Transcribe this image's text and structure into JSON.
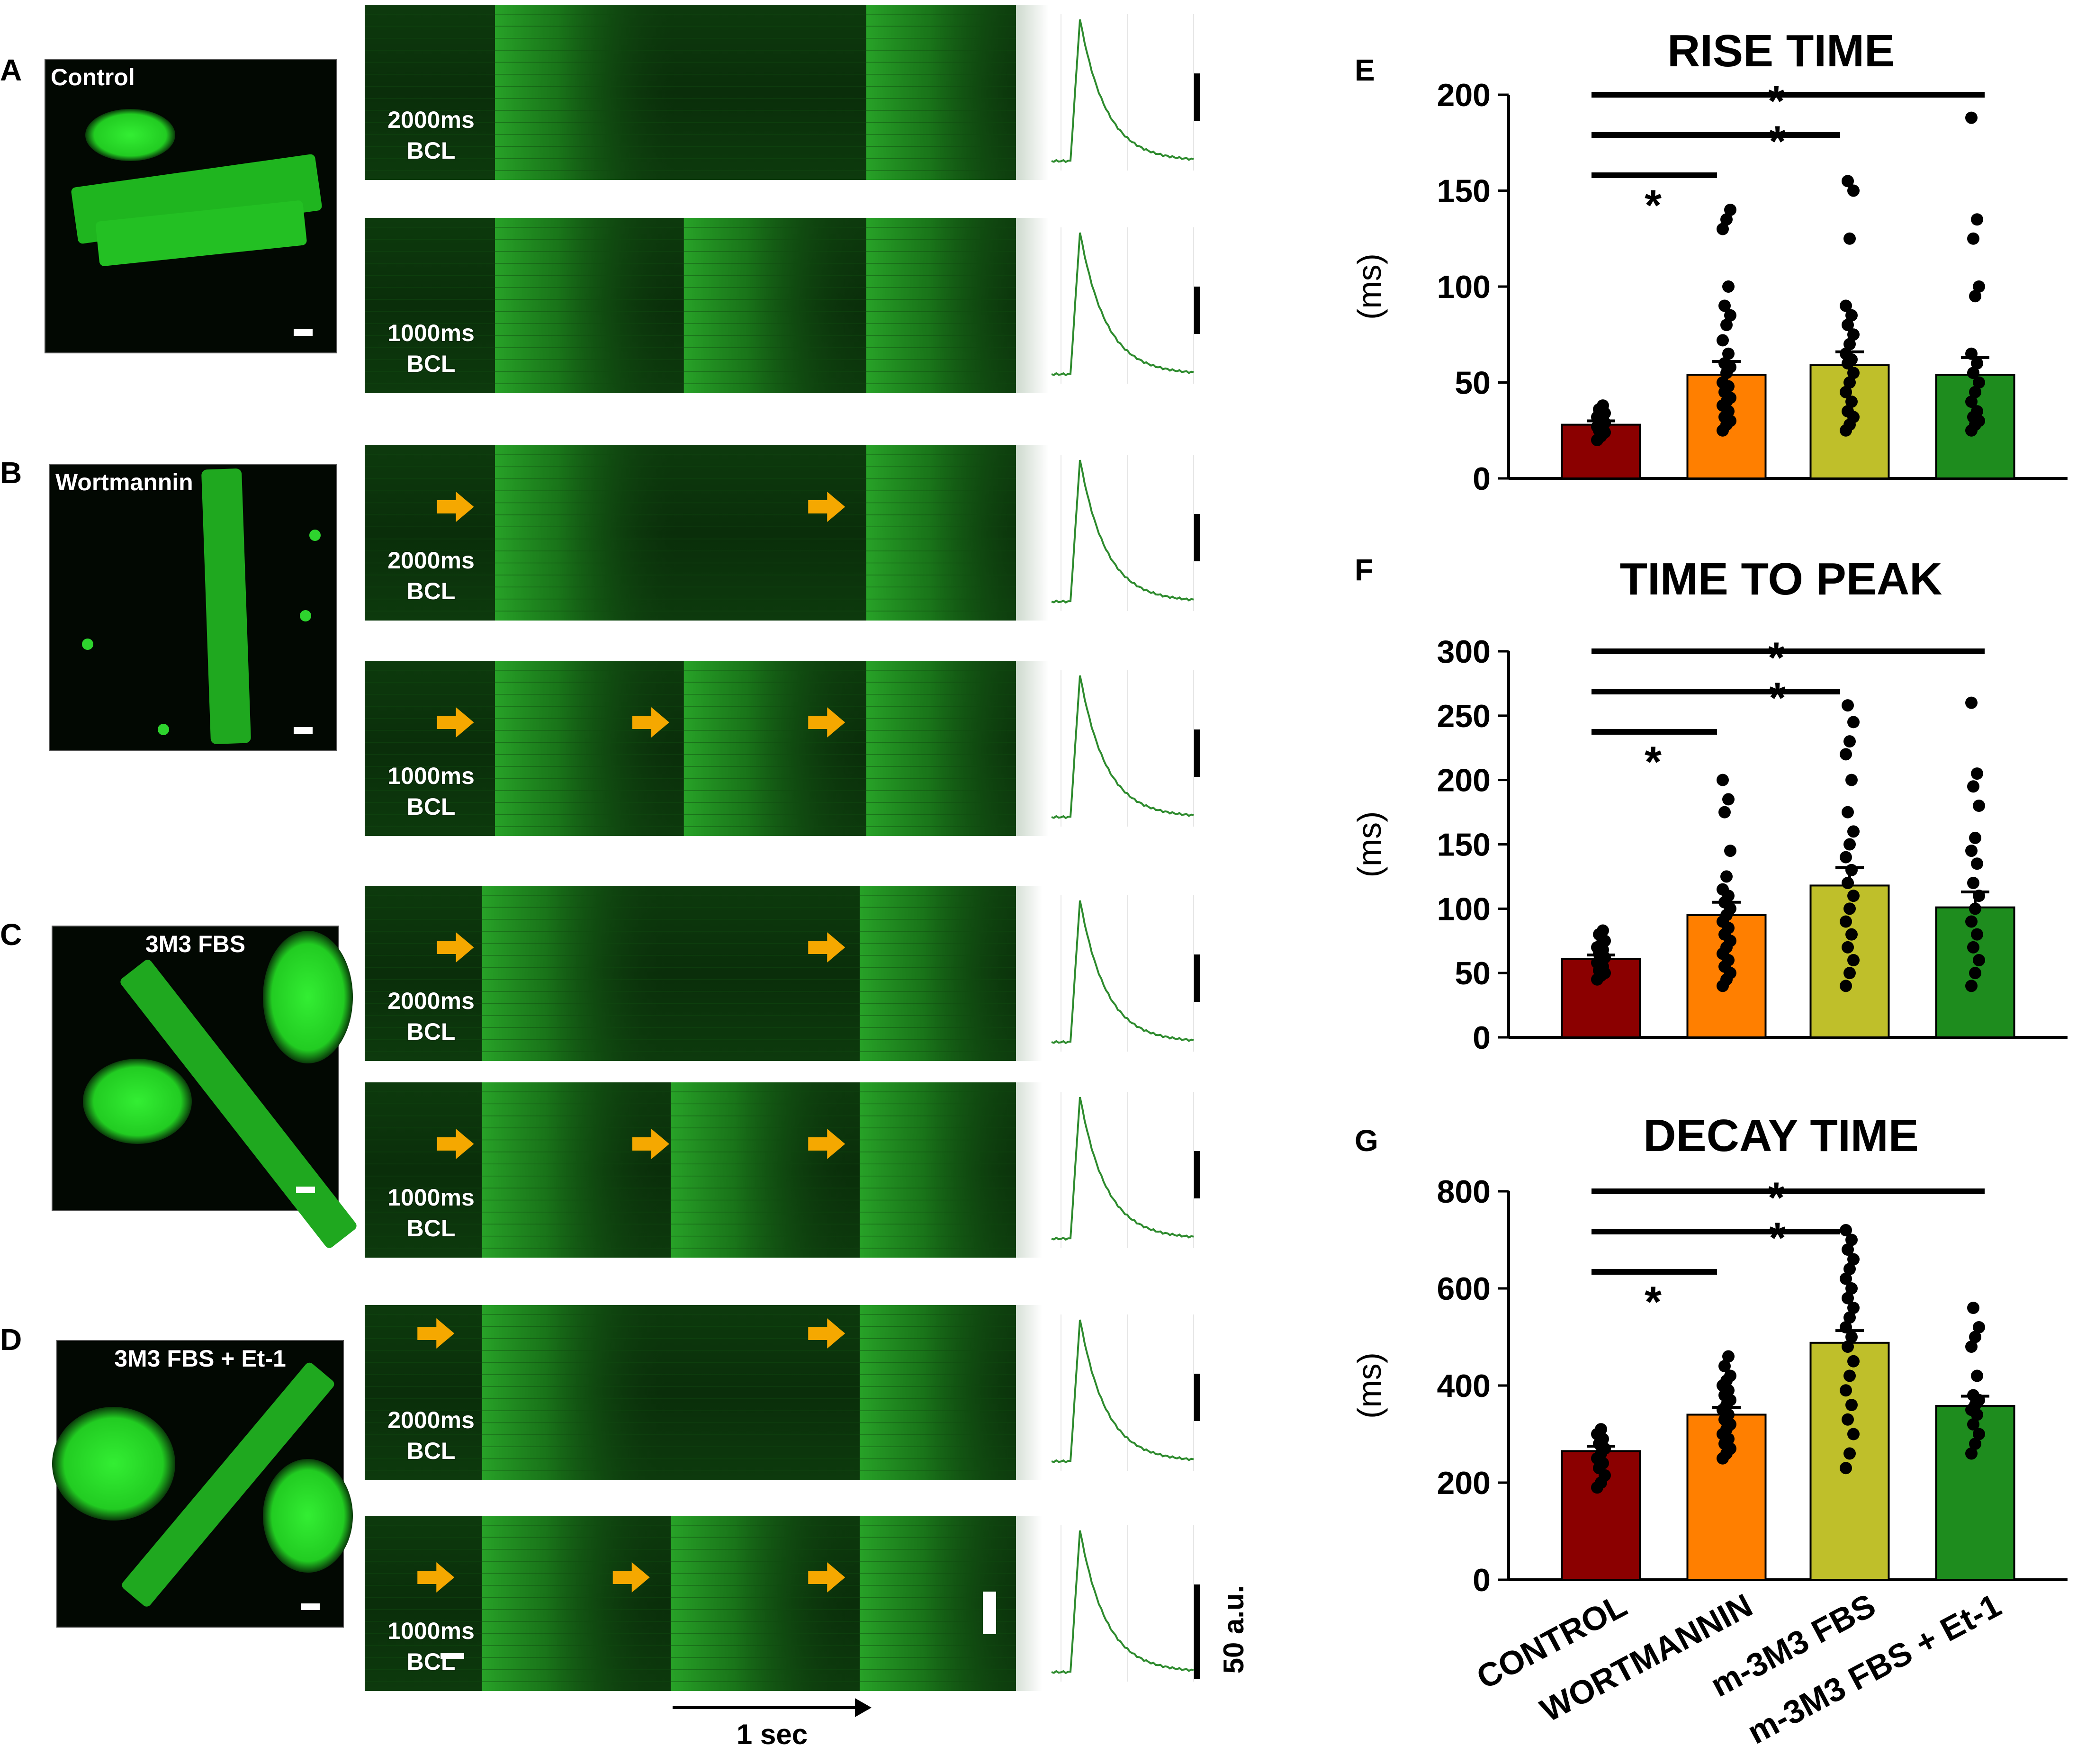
{
  "panels": [
    {
      "label": "A",
      "image_label": "Control",
      "kymos": [
        {
          "bcl": "2000ms",
          "bcl_unit": "BCL",
          "beats": [
            0.2,
            0.77
          ],
          "arrows": []
        },
        {
          "bcl": "1000ms",
          "bcl_unit": "BCL",
          "beats": [
            0.2,
            0.49,
            0.77
          ],
          "arrows": []
        }
      ]
    },
    {
      "label": "B",
      "image_label": "Wortmannin",
      "kymos": [
        {
          "bcl": "2000ms",
          "bcl_unit": "BCL",
          "beats": [
            0.2,
            0.77
          ],
          "arrows": [
            0.14,
            0.71
          ]
        },
        {
          "bcl": "1000ms",
          "bcl_unit": "BCL",
          "beats": [
            0.2,
            0.49,
            0.77
          ],
          "arrows": [
            0.14,
            0.44,
            0.71
          ]
        }
      ]
    },
    {
      "label": "C",
      "image_label": "3M3 FBS",
      "kymos": [
        {
          "bcl": "2000ms",
          "bcl_unit": "BCL",
          "beats": [
            0.18,
            0.76
          ],
          "arrows": [
            0.14,
            0.71
          ]
        },
        {
          "bcl": "1000ms",
          "bcl_unit": "BCL",
          "beats": [
            0.18,
            0.47,
            0.76
          ],
          "arrows": [
            0.14,
            0.44,
            0.71
          ]
        }
      ]
    },
    {
      "label": "D",
      "image_label": "3M3 FBS + Et-1",
      "kymos": [
        {
          "bcl": "2000ms",
          "bcl_unit": "BCL",
          "beats": [
            0.18,
            0.76
          ],
          "arrows": [
            0.11,
            0.71
          ]
        },
        {
          "bcl": "1000ms",
          "bcl_unit": "BCL",
          "beats": [
            0.18,
            0.47,
            0.76
          ],
          "arrows": [
            0.11,
            0.41,
            0.71
          ]
        }
      ]
    }
  ],
  "time_scale_label": "1 sec",
  "amplitude_scale_label": "50 a.u.",
  "colors": {
    "control": "#8B0000",
    "wortmannin": "#FF7F00",
    "m3m3": "#BFBF2A",
    "m3m3_et1": "#1E8C1E",
    "fluor": "#22cc22",
    "arrow": "#F5A800",
    "trace": "#2e8b2e"
  },
  "chart_data": [
    {
      "panel": "E",
      "type": "bar",
      "title": "RISE TIME",
      "ylabel": "(ms)",
      "ylim": [
        0,
        200
      ],
      "yticks": [
        0,
        50,
        100,
        150,
        200
      ],
      "categories": [
        "CONTROL",
        "WORTMANNIN",
        "m-3M3 FBS",
        "m-3M3 FBS + Et-1"
      ],
      "values": [
        28,
        54,
        59,
        54
      ],
      "sem": [
        2,
        7,
        7,
        9
      ],
      "points": [
        [
          20,
          22,
          24,
          25,
          26,
          27,
          28,
          29,
          30,
          31,
          32,
          33,
          34,
          36,
          38
        ],
        [
          25,
          28,
          30,
          32,
          35,
          38,
          40,
          42,
          45,
          48,
          50,
          55,
          58,
          60,
          65,
          72,
          80,
          85,
          90,
          100,
          130,
          135,
          140
        ],
        [
          25,
          28,
          32,
          35,
          40,
          45,
          50,
          55,
          60,
          62,
          65,
          70,
          75,
          80,
          85,
          90,
          125,
          150,
          155
        ],
        [
          25,
          28,
          30,
          32,
          35,
          40,
          45,
          50,
          55,
          60,
          65,
          95,
          100,
          125,
          135,
          188
        ]
      ],
      "significance": [
        {
          "from": 0,
          "to": 1,
          "label": "*"
        },
        {
          "from": 0,
          "to": 2,
          "label": "*"
        },
        {
          "from": 0,
          "to": 3,
          "label": "*"
        }
      ]
    },
    {
      "panel": "F",
      "type": "bar",
      "title": "TIME TO PEAK",
      "ylabel": "(ms)",
      "ylim": [
        0,
        300
      ],
      "yticks": [
        0,
        50,
        100,
        150,
        200,
        250,
        300
      ],
      "categories": [
        "CONTROL",
        "WORTMANNIN",
        "m-3M3 FBS",
        "m-3M3 FBS + Et-1"
      ],
      "values": [
        61,
        95,
        118,
        101
      ],
      "sem": [
        3,
        10,
        14,
        12
      ],
      "points": [
        [
          45,
          48,
          50,
          52,
          55,
          58,
          60,
          62,
          65,
          68,
          70,
          72,
          75,
          80,
          83
        ],
        [
          40,
          45,
          50,
          55,
          60,
          65,
          70,
          75,
          80,
          85,
          90,
          95,
          100,
          105,
          110,
          115,
          125,
          145,
          175,
          185,
          200
        ],
        [
          40,
          50,
          60,
          70,
          80,
          90,
          100,
          110,
          120,
          130,
          140,
          150,
          160,
          175,
          200,
          220,
          230,
          245,
          258
        ],
        [
          40,
          50,
          60,
          70,
          80,
          90,
          100,
          110,
          120,
          135,
          145,
          155,
          180,
          195,
          205,
          260
        ]
      ],
      "significance": [
        {
          "from": 0,
          "to": 1,
          "label": "*"
        },
        {
          "from": 0,
          "to": 2,
          "label": "*"
        },
        {
          "from": 0,
          "to": 3,
          "label": "*"
        }
      ]
    },
    {
      "panel": "G",
      "type": "bar",
      "title": "DECAY TIME",
      "ylabel": "(ms)",
      "ylim": [
        0,
        800
      ],
      "yticks": [
        0,
        200,
        400,
        600,
        800
      ],
      "categories": [
        "CONTROL",
        "WORTMANNIN",
        "m-3M3 FBS",
        "m-3M3 FBS + Et-1"
      ],
      "values": [
        265,
        340,
        488,
        358
      ],
      "sem": [
        10,
        15,
        25,
        20
      ],
      "points": [
        [
          190,
          200,
          215,
          230,
          240,
          250,
          260,
          270,
          280,
          290,
          300,
          310
        ],
        [
          250,
          260,
          270,
          280,
          290,
          300,
          310,
          320,
          330,
          340,
          350,
          360,
          370,
          380,
          390,
          400,
          410,
          420,
          440,
          460
        ],
        [
          230,
          260,
          300,
          330,
          360,
          390,
          420,
          450,
          480,
          500,
          520,
          540,
          560,
          580,
          600,
          620,
          640,
          660,
          680,
          700,
          720
        ],
        [
          260,
          280,
          300,
          320,
          340,
          350,
          360,
          370,
          380,
          420,
          480,
          500,
          520,
          560
        ]
      ],
      "significance": [
        {
          "from": 0,
          "to": 1,
          "label": "*"
        },
        {
          "from": 0,
          "to": 2,
          "label": "*"
        },
        {
          "from": 0,
          "to": 3,
          "label": "*"
        }
      ]
    }
  ]
}
